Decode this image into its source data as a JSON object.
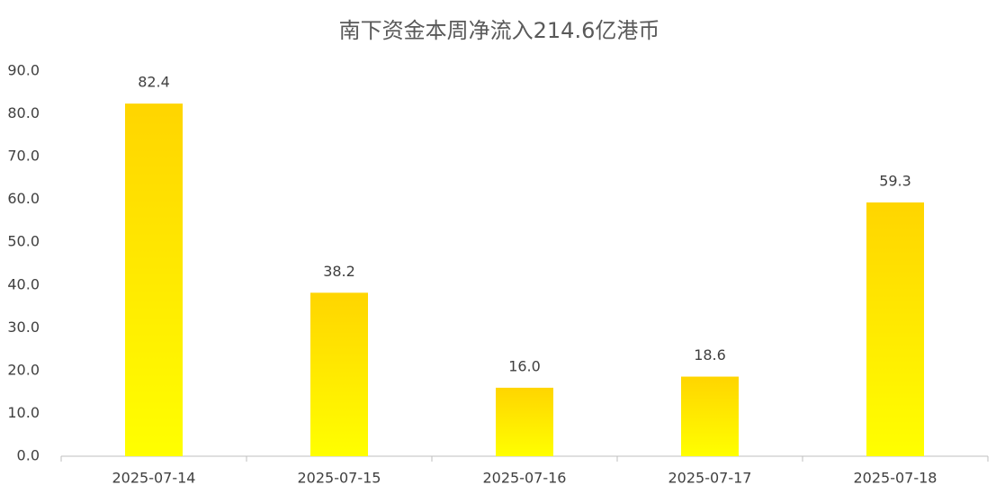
{
  "chart_data": {
    "type": "bar",
    "title": "南下资金本周净流入214.6亿港币",
    "categories": [
      "2025-07-14",
      "2025-07-15",
      "2025-07-16",
      "2025-07-17",
      "2025-07-18"
    ],
    "values": [
      82.4,
      38.2,
      16.0,
      18.6,
      59.3
    ],
    "value_labels": [
      "82.4",
      "38.2",
      "16.0",
      "18.6",
      "59.3"
    ],
    "gradient": [
      "#FFD500",
      "#FFFF00"
    ],
    "ylim": [
      0,
      90
    ],
    "yticks": [
      {
        "value": 0,
        "label": "0.0"
      },
      {
        "value": 10,
        "label": "10.0"
      },
      {
        "value": 20,
        "label": "20.0"
      },
      {
        "value": 30,
        "label": "30.0"
      },
      {
        "value": 40,
        "label": "40.0"
      },
      {
        "value": 50,
        "label": "50.0"
      },
      {
        "value": 60,
        "label": "60.0"
      },
      {
        "value": 70,
        "label": "70.0"
      },
      {
        "value": 80,
        "label": "80.0"
      },
      {
        "value": 90,
        "label": "90.0"
      }
    ],
    "grid": false
  }
}
